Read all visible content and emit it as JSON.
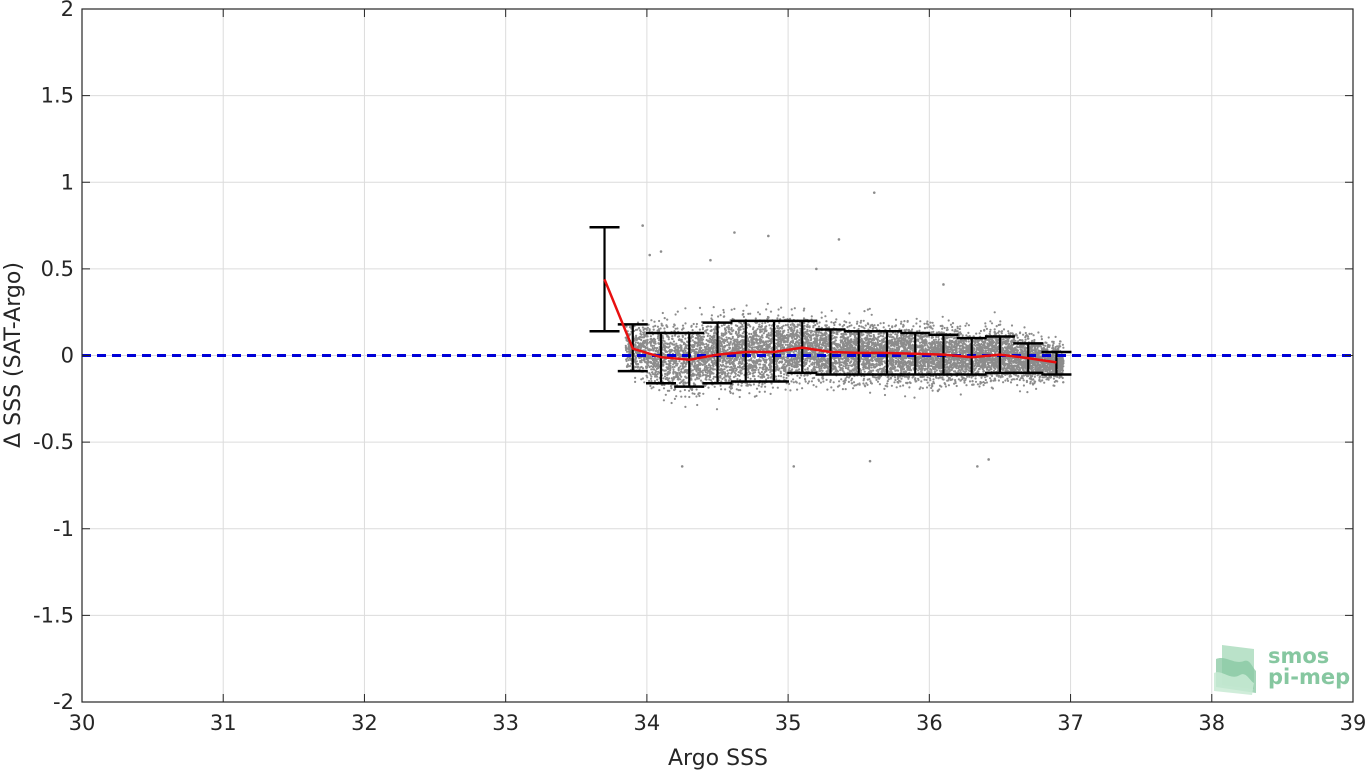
{
  "chart_data": {
    "type": "scatter",
    "xlabel": "Argo SSS",
    "ylabel": "Δ SSS (SAT-Argo)",
    "xlim": [
      30,
      39
    ],
    "ylim": [
      -2,
      2
    ],
    "xticks": [
      30,
      31,
      32,
      33,
      34,
      35,
      36,
      37,
      38,
      39
    ],
    "yticks": [
      -2,
      -1.5,
      -1,
      -0.5,
      0,
      0.5,
      1,
      1.5,
      2
    ],
    "xtick_labels": [
      "30",
      "31",
      "32",
      "33",
      "34",
      "35",
      "36",
      "37",
      "38",
      "39"
    ],
    "ytick_labels": [
      "-2",
      "-1.5",
      "-1",
      "-0.5",
      "0",
      "0.5",
      "1",
      "1.5",
      "2"
    ],
    "grid": true,
    "zero_line": {
      "y": 0,
      "style": "dashed",
      "color": "#0000d8"
    },
    "scatter_color": "#8c8c8c",
    "mean_line_color": "#e81010",
    "errorbar_color": "#000000",
    "scatter_cloud": {
      "description_points": [
        [
          33.97,
          0.75
        ],
        [
          34.02,
          0.58
        ],
        [
          34.1,
          0.6
        ],
        [
          34.25,
          -0.64
        ],
        [
          34.62,
          0.71
        ],
        [
          34.86,
          0.69
        ],
        [
          35.04,
          -0.64
        ],
        [
          35.36,
          0.67
        ],
        [
          35.61,
          0.94
        ],
        [
          35.58,
          -0.61
        ],
        [
          36.34,
          -0.64
        ],
        [
          36.42,
          -0.6
        ],
        [
          34.45,
          0.55
        ],
        [
          35.2,
          0.5
        ],
        [
          36.1,
          0.41
        ]
      ],
      "x_range": [
        33.85,
        36.95
      ],
      "spread": [
        {
          "x": 33.9,
          "mean": 0.05,
          "sd": 0.09
        },
        {
          "x": 34.1,
          "mean": -0.01,
          "sd": 0.14
        },
        {
          "x": 34.3,
          "mean": -0.02,
          "sd": 0.14
        },
        {
          "x": 34.5,
          "mean": 0.01,
          "sd": 0.14
        },
        {
          "x": 34.7,
          "mean": 0.02,
          "sd": 0.14
        },
        {
          "x": 34.9,
          "mean": 0.03,
          "sd": 0.13
        },
        {
          "x": 35.1,
          "mean": 0.045,
          "sd": 0.12
        },
        {
          "x": 35.3,
          "mean": 0.02,
          "sd": 0.11
        },
        {
          "x": 35.5,
          "mean": 0.015,
          "sd": 0.11
        },
        {
          "x": 35.7,
          "mean": 0.015,
          "sd": 0.11
        },
        {
          "x": 35.9,
          "mean": 0.01,
          "sd": 0.11
        },
        {
          "x": 36.1,
          "mean": 0.005,
          "sd": 0.11
        },
        {
          "x": 36.3,
          "mean": -0.005,
          "sd": 0.1
        },
        {
          "x": 36.5,
          "mean": 0.005,
          "sd": 0.1
        },
        {
          "x": 36.7,
          "mean": -0.015,
          "sd": 0.09
        },
        {
          "x": 36.9,
          "mean": -0.04,
          "sd": 0.07
        }
      ]
    },
    "mean_line": {
      "x": [
        33.7,
        33.9,
        34.1,
        34.3,
        34.5,
        34.7,
        34.9,
        35.1,
        35.3,
        35.5,
        35.7,
        35.9,
        36.1,
        36.3,
        36.5,
        36.7,
        36.9
      ],
      "y": [
        0.44,
        0.04,
        -0.01,
        -0.025,
        0.005,
        0.02,
        0.02,
        0.045,
        0.02,
        0.015,
        0.015,
        0.01,
        0.005,
        -0.01,
        0.005,
        -0.015,
        -0.04
      ]
    },
    "error_bars": [
      {
        "x": 33.7,
        "low": 0.14,
        "high": 0.74
      },
      {
        "x": 33.9,
        "low": -0.09,
        "high": 0.18
      },
      {
        "x": 34.1,
        "low": -0.16,
        "high": 0.13
      },
      {
        "x": 34.3,
        "low": -0.18,
        "high": 0.13
      },
      {
        "x": 34.5,
        "low": -0.16,
        "high": 0.19
      },
      {
        "x": 34.7,
        "low": -0.15,
        "high": 0.2
      },
      {
        "x": 34.9,
        "low": -0.15,
        "high": 0.2
      },
      {
        "x": 35.1,
        "low": -0.1,
        "high": 0.2
      },
      {
        "x": 35.3,
        "low": -0.11,
        "high": 0.15
      },
      {
        "x": 35.5,
        "low": -0.11,
        "high": 0.14
      },
      {
        "x": 35.7,
        "low": -0.11,
        "high": 0.14
      },
      {
        "x": 35.9,
        "low": -0.11,
        "high": 0.13
      },
      {
        "x": 36.1,
        "low": -0.11,
        "high": 0.12
      },
      {
        "x": 36.3,
        "low": -0.11,
        "high": 0.1
      },
      {
        "x": 36.5,
        "low": -0.1,
        "high": 0.11
      },
      {
        "x": 36.7,
        "low": -0.1,
        "high": 0.07
      },
      {
        "x": 36.9,
        "low": -0.11,
        "high": 0.02
      }
    ]
  },
  "logo": {
    "line1": "smos",
    "line2": "pi-mep",
    "color": "#86c7a0"
  }
}
